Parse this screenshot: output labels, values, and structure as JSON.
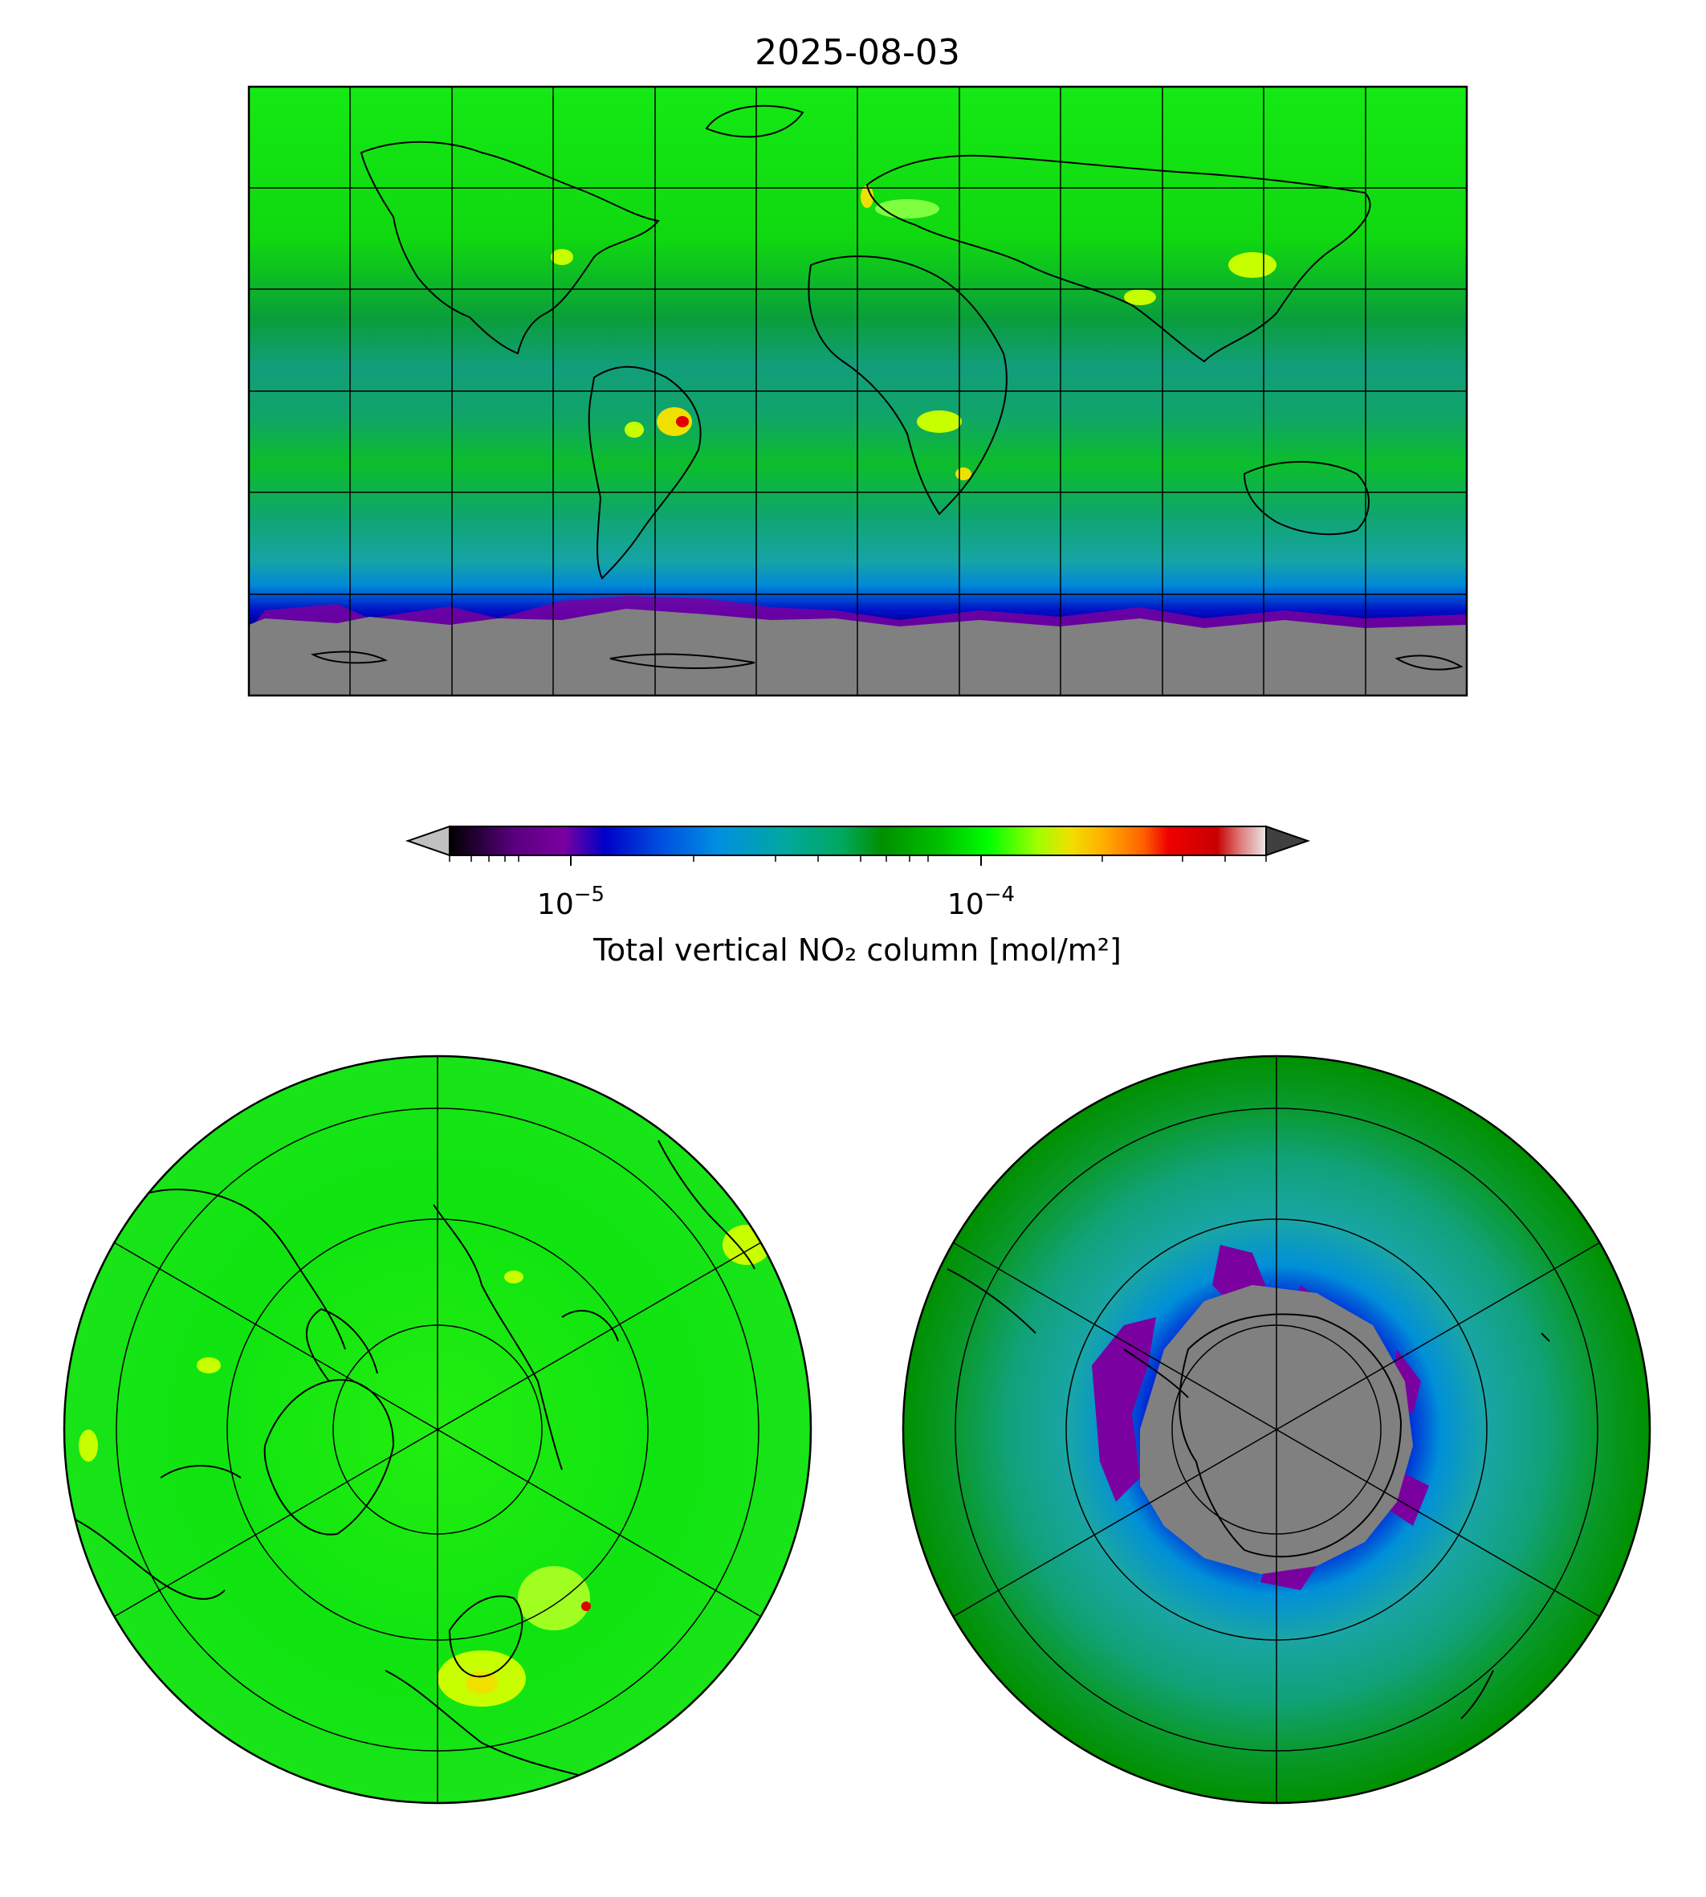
{
  "title": "2025-08-03",
  "colorbar": {
    "label": "Total vertical NO₂ column [mol/m²]",
    "scale": "log",
    "range": [
      5e-06,
      0.0005
    ],
    "major_ticks": [
      {
        "value": 1e-05,
        "base": "10",
        "exponent": "−5"
      },
      {
        "value": 0.0001,
        "base": "10",
        "exponent": "−4"
      }
    ],
    "under_color": "#c0c0c0",
    "over_color": "#404040",
    "colormap": [
      "#000000",
      "#7a00a0",
      "#0000c8",
      "#0090e0",
      "#00a8a0",
      "#009000",
      "#00ff00",
      "#c8ff00",
      "#f0d000",
      "#ff7000",
      "#e00000",
      "#c80000",
      "#e8e8e8"
    ]
  },
  "panels": {
    "global": {
      "projection": "plate-carree",
      "no_data_color": "#808080"
    },
    "north_polar": {
      "projection": "north-polar-stereographic"
    },
    "south_polar": {
      "projection": "south-polar-stereographic",
      "no_data_color": "#808080"
    }
  }
}
